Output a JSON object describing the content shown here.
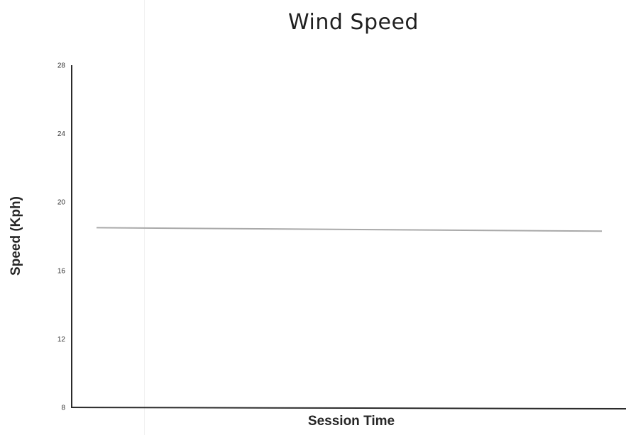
{
  "chart_data": {
    "type": "line",
    "title": "Wind Speed",
    "xlabel": "Session Time",
    "ylabel": "Speed (Kph)",
    "ylim": [
      8,
      28
    ],
    "yticks": [
      8,
      12,
      16,
      20,
      24,
      28
    ],
    "ytick_labels": [
      "8",
      "12",
      "16",
      "20",
      "24",
      "28"
    ],
    "grid": false,
    "series": [
      {
        "values": [
          18.5,
          18.3
        ],
        "color": "#a9a9a9"
      }
    ]
  }
}
